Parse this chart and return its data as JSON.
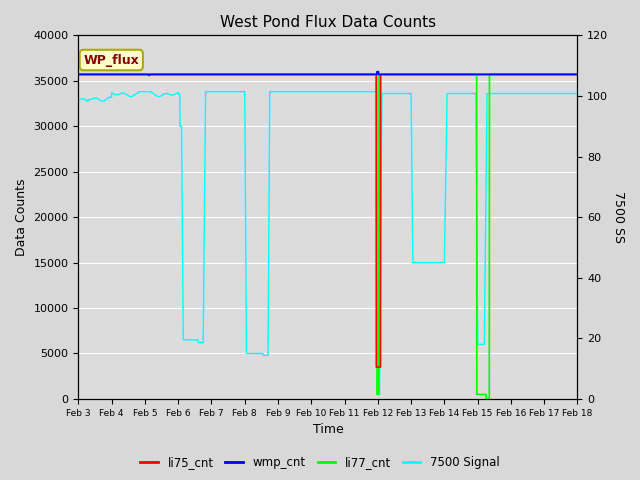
{
  "title": "West Pond Flux Data Counts",
  "xlabel": "Time",
  "ylabel_left": "Data Counts",
  "ylabel_right": "7500 SS",
  "ylim_left": [
    0,
    40000
  ],
  "ylim_right": [
    0,
    120
  ],
  "bg_color": "#dcdcdc",
  "annotation_text": "WP_flux",
  "annotation_bg": "#ffffcc",
  "annotation_border": "#aaaa00",
  "x_tick_labels": [
    "Feb 3",
    "Feb 4",
    "Feb 5",
    "Feb 6",
    "Feb 7",
    "Feb 8",
    "Feb 9",
    "Feb 10",
    "Feb 11",
    "Feb 12",
    "Feb 13",
    "Feb 14",
    "Feb 15",
    "Feb 16",
    "Feb 17",
    "Feb 18"
  ],
  "legend_entries": [
    "li75_cnt",
    "wmp_cnt",
    "li77_cnt",
    "7500 Signal"
  ],
  "line_li75": "red",
  "line_wmp": "blue",
  "line_li77": "#00ff00",
  "line_7500": "cyan",
  "fig_bg": "#d8d8d8"
}
